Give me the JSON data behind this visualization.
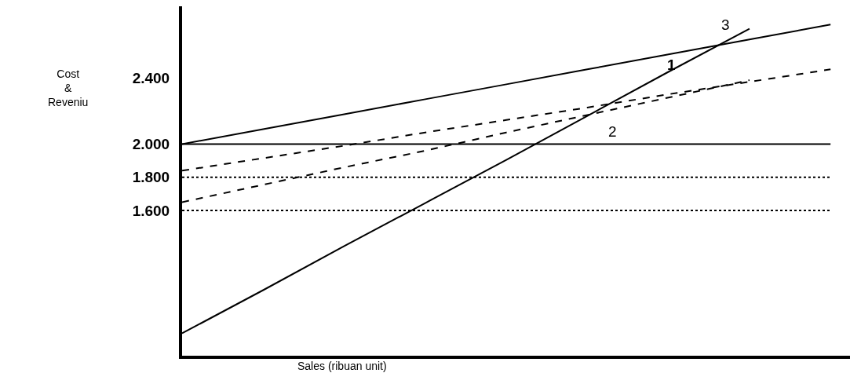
{
  "chart_data": {
    "type": "line",
    "xlabel": "Sales (ribuan unit)",
    "ylabel": "Cost\n&\nReveniu",
    "categories": [
      null,
      null,
      null,
      null,
      null,
      null,
      null,
      null,
      null
    ],
    "series": [
      {
        "color": "#000000",
        "line_style": "solid",
        "values": [
          860,
          1120,
          1385,
          1645,
          1905,
          2170,
          2435,
          2695,
          null
        ]
      },
      {
        "color": "#000000",
        "line_style": "solid",
        "values": [
          2000,
          2090,
          2180,
          2270,
          2360,
          2450,
          2540,
          2630,
          2720
        ]
      },
      {
        "color": "#000000",
        "line_style": "dashed",
        "values": [
          1840,
          1915,
          1990,
          2070,
          2145,
          2220,
          2300,
          2375,
          2450
        ]
      },
      {
        "color": "#000000",
        "line_style": "dashed",
        "values": [
          1650,
          1755,
          1860,
          1960,
          2070,
          2175,
          2280,
          2385,
          null
        ]
      }
    ],
    "ref_lines": [
      {
        "axis": "y",
        "value": 2000,
        "color": "#000000",
        "line_style": "solid"
      },
      {
        "axis": "y",
        "value": 1800,
        "color": "#000000",
        "line_style": "dotted"
      },
      {
        "axis": "y",
        "value": 1600,
        "color": "#000000",
        "line_style": "dotted"
      }
    ],
    "annotations": [
      "1",
      "2",
      "3"
    ],
    "ylim": [
      725,
      2830
    ],
    "yticks": [
      {
        "value": 1600,
        "label": "1.600"
      },
      {
        "value": 1800,
        "label": "1.800"
      },
      {
        "value": 2000,
        "label": "2.000"
      },
      {
        "value": 2400,
        "label": "2.400"
      }
    ],
    "tick_labels": "y",
    "marker": "none"
  }
}
